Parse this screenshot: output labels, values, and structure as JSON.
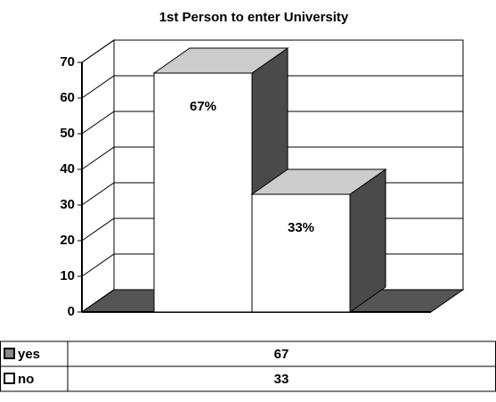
{
  "chart_data": {
    "type": "bar3d",
    "title": "1st Person to enter University",
    "categories": [
      "yes",
      "no"
    ],
    "values": [
      67,
      33
    ],
    "value_labels": [
      "67%",
      "33%"
    ],
    "ylim": [
      0,
      70
    ],
    "yticks": [
      0,
      10,
      20,
      30,
      40,
      50,
      60,
      70
    ],
    "grid": true
  }
}
